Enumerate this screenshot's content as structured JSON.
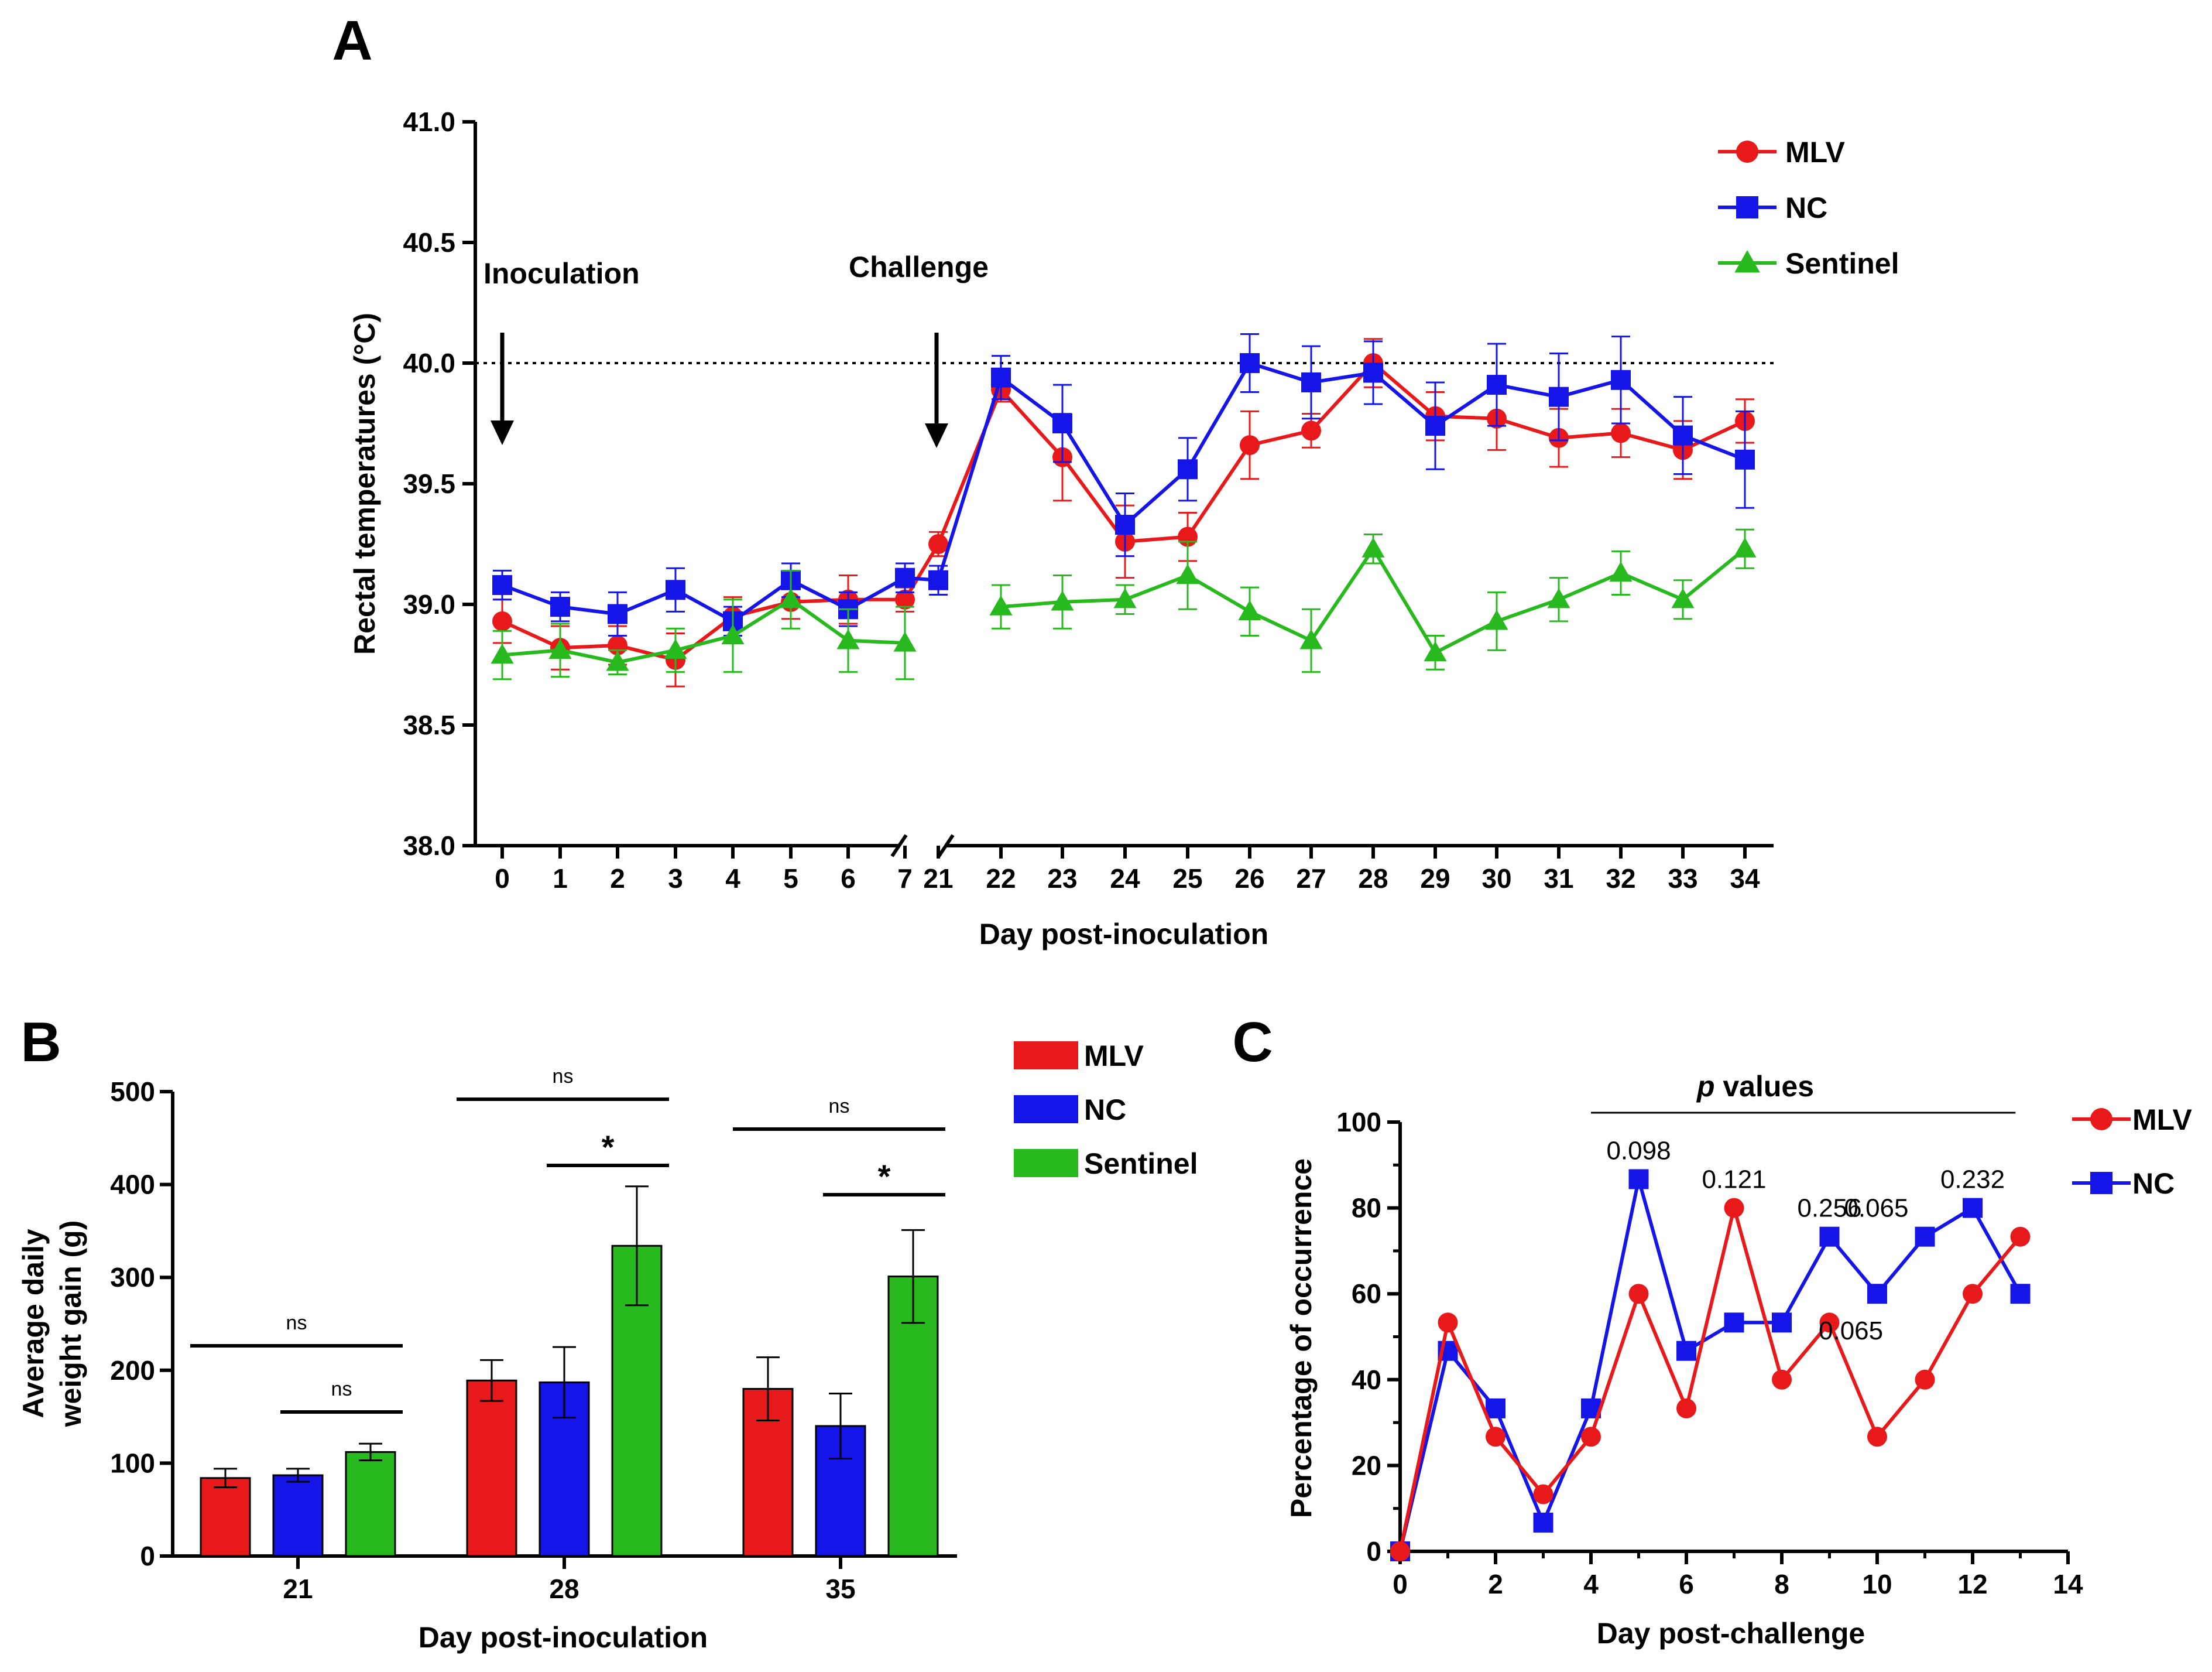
{
  "chart_data": [
    {
      "panel": "A",
      "type": "line",
      "title": "",
      "xlabel": "Day post-inoculation",
      "ylabel": "Rectal temperatures (°C)",
      "ylim": [
        38.0,
        41.0
      ],
      "yticks": [
        "38.0",
        "38.5",
        "39.0",
        "39.5",
        "40.0",
        "40.5",
        "41.0"
      ],
      "x": [
        "0",
        "1",
        "2",
        "3",
        "4",
        "5",
        "6",
        "7",
        "21",
        "22",
        "23",
        "24",
        "25",
        "26",
        "27",
        "28",
        "29",
        "30",
        "31",
        "32",
        "33",
        "34"
      ],
      "axis_break": "between 7 and 21",
      "reference_line": 40.0,
      "annotations": [
        {
          "text": "Inoculation",
          "at_day": "0"
        },
        {
          "text": "Challenge",
          "at_day": "21"
        }
      ],
      "series": [
        {
          "name": "MLV",
          "color": "#e8191b",
          "marker": "circle",
          "values": [
            38.93,
            38.82,
            38.83,
            38.77,
            38.95,
            39.01,
            39.02,
            39.02,
            39.25,
            39.89,
            39.61,
            39.26,
            39.28,
            39.66,
            39.72,
            40.0,
            39.78,
            39.77,
            39.69,
            39.71,
            39.64,
            39.76
          ],
          "errors": [
            0.09,
            0.09,
            0.08,
            0.11,
            0.08,
            0.07,
            0.1,
            0.05,
            0.05,
            0.05,
            0.18,
            0.15,
            0.1,
            0.14,
            0.07,
            0.1,
            0.1,
            0.13,
            0.12,
            0.1,
            0.12,
            0.09
          ]
        },
        {
          "name": "NC",
          "color": "#1515e8",
          "marker": "square",
          "values": [
            39.08,
            38.99,
            38.96,
            39.06,
            38.93,
            39.1,
            38.98,
            39.11,
            39.1,
            39.94,
            39.75,
            39.33,
            39.56,
            40.0,
            39.92,
            39.96,
            39.74,
            39.91,
            39.86,
            39.93,
            39.7,
            39.6
          ],
          "errors": [
            0.06,
            0.06,
            0.09,
            0.09,
            0.06,
            0.07,
            0.07,
            0.06,
            0.06,
            0.09,
            0.16,
            0.13,
            0.13,
            0.12,
            0.15,
            0.13,
            0.18,
            0.17,
            0.18,
            0.18,
            0.16,
            0.2
          ]
        },
        {
          "name": "Sentinel",
          "color": "#28b91e",
          "marker": "triangle",
          "values": [
            38.79,
            38.81,
            38.76,
            38.81,
            38.87,
            39.02,
            38.85,
            38.84,
            null,
            38.99,
            39.01,
            39.02,
            39.12,
            38.97,
            38.85,
            39.23,
            38.8,
            38.93,
            39.02,
            39.13,
            39.02,
            39.23
          ],
          "errors": [
            0.1,
            0.11,
            0.05,
            0.09,
            0.15,
            0.12,
            0.13,
            0.15,
            null,
            0.09,
            0.11,
            0.06,
            0.14,
            0.1,
            0.13,
            0.06,
            0.07,
            0.12,
            0.09,
            0.09,
            0.08,
            0.08
          ]
        }
      ],
      "legend": "top-right"
    },
    {
      "panel": "B",
      "type": "bar",
      "title": "",
      "xlabel": "Day post-inoculation",
      "ylabel_lines": [
        "Average daily",
        "weight gain  (g)"
      ],
      "ylim": [
        0,
        500
      ],
      "yticks": [
        "0",
        "100",
        "200",
        "300",
        "400",
        "500"
      ],
      "categories": [
        "21",
        "28",
        "35"
      ],
      "series": [
        {
          "name": "MLV",
          "color": "#e8191b",
          "values": [
            84,
            189,
            180
          ],
          "errors": [
            10,
            22,
            34
          ]
        },
        {
          "name": "NC",
          "color": "#1515e8",
          "values": [
            87,
            187,
            140
          ],
          "errors": [
            7,
            38,
            35
          ]
        },
        {
          "name": "Sentinel",
          "color": "#28b91e",
          "values": [
            112,
            334,
            301
          ],
          "errors": [
            9,
            64,
            50
          ]
        }
      ],
      "significance": [
        {
          "category": "21",
          "from": "MLV",
          "to": "Sentinel",
          "label": "ns"
        },
        {
          "category": "21",
          "from": "NC",
          "to": "Sentinel",
          "label": "ns"
        },
        {
          "category": "28",
          "from": "MLV",
          "to": "Sentinel",
          "label": "ns"
        },
        {
          "category": "28",
          "from": "NC",
          "to": "Sentinel",
          "label": "*"
        },
        {
          "category": "35",
          "from": "MLV",
          "to": "Sentinel",
          "label": "ns"
        },
        {
          "category": "35",
          "from": "NC",
          "to": "Sentinel",
          "label": "*"
        }
      ],
      "legend": "top-right"
    },
    {
      "panel": "C",
      "type": "line",
      "title": "",
      "xlabel": "Day post-challenge",
      "ylabel": "Percentage of occurrence",
      "xlim": [
        0,
        14
      ],
      "ylim": [
        0,
        100
      ],
      "xticks": [
        "0",
        "2",
        "4",
        "6",
        "8",
        "10",
        "12",
        "14"
      ],
      "yticks": [
        "0",
        "20",
        "40",
        "60",
        "80",
        "100"
      ],
      "x": [
        0,
        1,
        2,
        3,
        4,
        5,
        6,
        7,
        8,
        9,
        10,
        11,
        12,
        13
      ],
      "series": [
        {
          "name": "MLV",
          "color": "#e8191b",
          "marker": "circle",
          "values": [
            0,
            53.3,
            26.7,
            13.3,
            26.7,
            60,
            33.3,
            80,
            40,
            53.3,
            26.7,
            40,
            60,
            73.3
          ]
        },
        {
          "name": "NC",
          "color": "#1515e8",
          "marker": "square",
          "values": [
            0,
            46.7,
            33.3,
            6.7,
            33.3,
            86.7,
            46.7,
            53.3,
            53.3,
            73.3,
            60,
            73.3,
            80,
            60
          ]
        }
      ],
      "header": {
        "italic": "p",
        "text": " values"
      },
      "p_values": [
        {
          "text": "0.098",
          "x": 5,
          "y": 86.7,
          "place": "above"
        },
        {
          "text": "0.121",
          "x": 7,
          "y": 80,
          "place": "above"
        },
        {
          "text": "0.256",
          "x": 9,
          "y": 73.3,
          "place": "above"
        },
        {
          "text": "0.065",
          "x": 11,
          "y": 73.3,
          "place": "left"
        },
        {
          "text": "0.232",
          "x": 12,
          "y": 80,
          "place": "above"
        },
        {
          "text": "0.065",
          "x": 10,
          "y": 60,
          "place": "below-right"
        }
      ],
      "legend": "top-right"
    }
  ]
}
